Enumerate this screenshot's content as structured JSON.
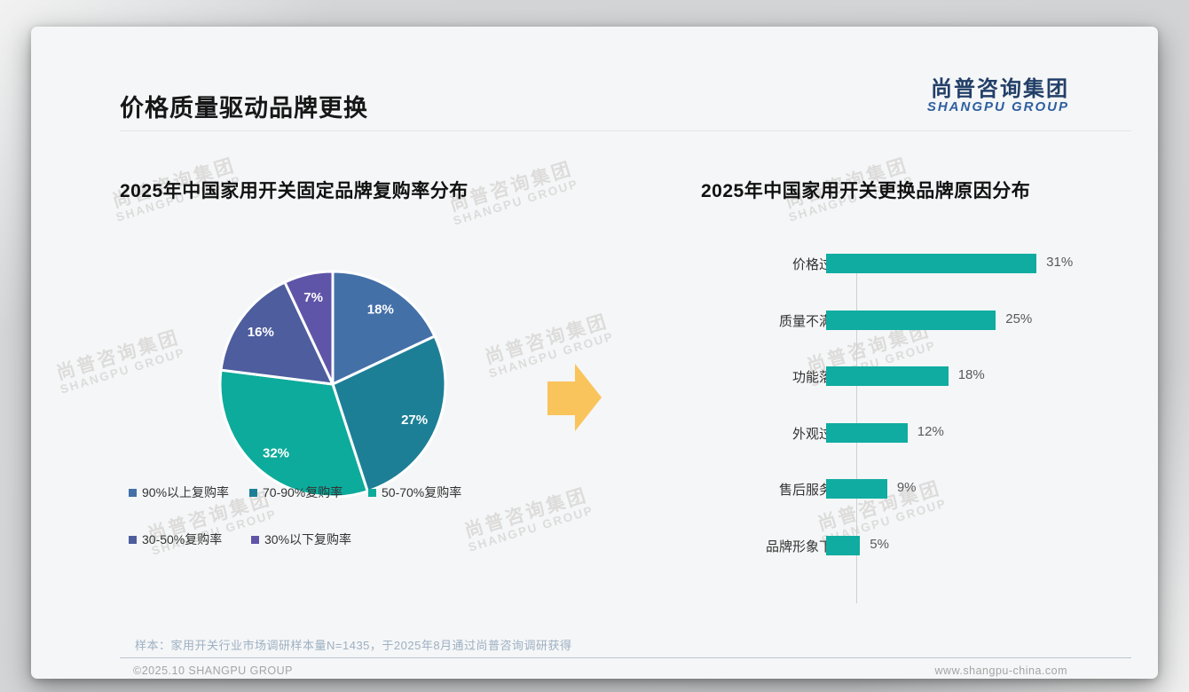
{
  "header": {
    "title": "价格质量驱动品牌更换"
  },
  "logo": {
    "cn": "尚普咨询集团",
    "en": "SHANGPU GROUP"
  },
  "watermark": {
    "cn": "尚普咨询集团",
    "en": "SHANGPU GROUP"
  },
  "arrow": {
    "color": "#f9c45c"
  },
  "chart_data": [
    {
      "type": "pie",
      "title": "2025年中国家用开关固定品牌复购率分布",
      "labels": [
        "90%以上复购率",
        "70-90%复购率",
        "50-70%复购率",
        "30-50%复购率",
        "30%以下复购率"
      ],
      "values": [
        18,
        27,
        32,
        16,
        7
      ],
      "value_suffix": "%",
      "colors": [
        "#4470a8",
        "#1d7f96",
        "#0dab9b",
        "#4d5d9e",
        "#5f55a8"
      ],
      "legend_position": "bottom",
      "start_angle_deg": 0,
      "direction": "clockwise"
    },
    {
      "type": "bar",
      "title": "2025年中国家用开关更换品牌原因分布",
      "orientation": "horizontal",
      "categories": [
        "价格过高",
        "质量不满意",
        "功能落后",
        "外观过时",
        "售后服务差",
        "品牌形象下降"
      ],
      "values": [
        31,
        25,
        18,
        12,
        9,
        5
      ],
      "value_suffix": "%",
      "bar_color": "#10aca1",
      "xlim": [
        0,
        35
      ],
      "grid": false,
      "value_labels": "end-of-bar"
    }
  ],
  "footer": {
    "note": "样本：家用开关行业市场调研样本量N=1435，于2025年8月通过尚普咨询调研获得",
    "copyright": "©2025.10 SHANGPU GROUP",
    "website": "www.shangpu-china.com"
  }
}
